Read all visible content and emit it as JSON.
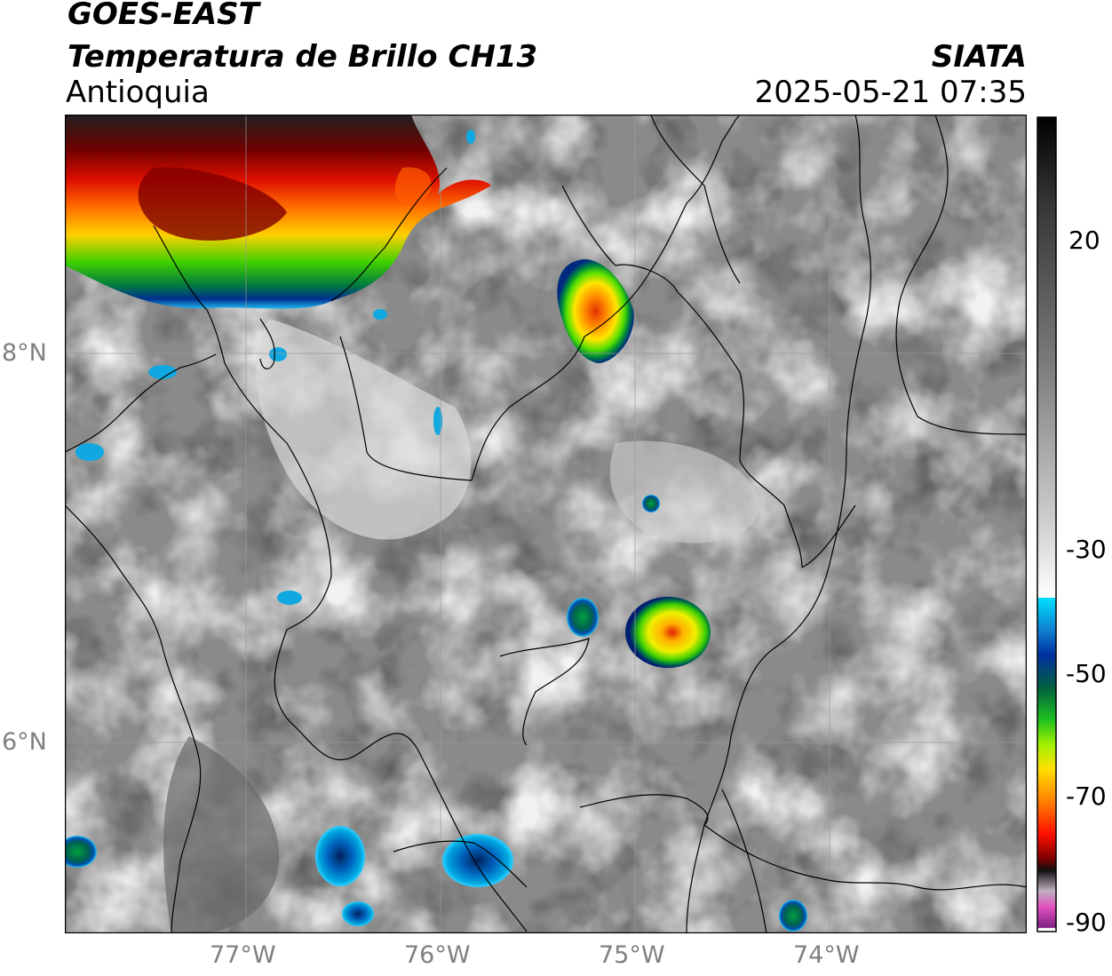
{
  "header": {
    "satellite": "GOES-EAST",
    "product": "Temperatura de Brillo CH13",
    "region": "Antioquia",
    "agency": "SIATA",
    "datetime": "2025-05-21 07:35"
  },
  "map": {
    "lon_labels": [
      "77°W",
      "76°W",
      "75°W",
      "74°W"
    ],
    "lat_labels": [
      "8°N",
      "6°N"
    ]
  },
  "colorbar": {
    "ticks": [
      "20",
      "-30",
      "-50",
      "-70",
      "-90"
    ]
  }
}
